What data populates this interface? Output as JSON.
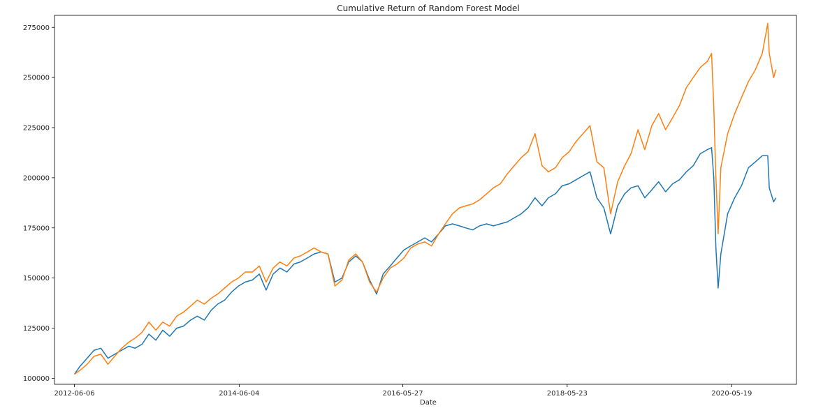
{
  "chart_data": {
    "type": "line",
    "title": "Cumulative Return of Random Forest Model",
    "xlabel": "Date",
    "ylabel": "",
    "ylim": [
      97000,
      281000
    ],
    "xlim": [
      "2012-03-10",
      "2021-03-01"
    ],
    "x_ticks": [
      "2012-06-06",
      "2014-06-04",
      "2016-05-27",
      "2018-05-23",
      "2020-05-19"
    ],
    "y_ticks": [
      100000,
      125000,
      150000,
      175000,
      200000,
      225000,
      250000,
      275000
    ],
    "y_tick_labels": [
      "100000",
      "125000",
      "150000",
      "175000",
      "200000",
      "225000",
      "250000",
      "275000"
    ],
    "grid": false,
    "legend": "none",
    "series": [
      {
        "color": "#1f77b4",
        "points": [
          [
            "2012-06-06",
            102000
          ],
          [
            "2012-07-01",
            106000
          ],
          [
            "2012-08-01",
            110000
          ],
          [
            "2012-09-01",
            114000
          ],
          [
            "2012-10-01",
            115000
          ],
          [
            "2012-11-01",
            110000
          ],
          [
            "2012-12-01",
            112000
          ],
          [
            "2013-01-01",
            114000
          ],
          [
            "2013-02-01",
            116000
          ],
          [
            "2013-03-01",
            115000
          ],
          [
            "2013-04-01",
            117000
          ],
          [
            "2013-05-01",
            122000
          ],
          [
            "2013-06-01",
            119000
          ],
          [
            "2013-07-01",
            124000
          ],
          [
            "2013-08-01",
            121000
          ],
          [
            "2013-09-01",
            125000
          ],
          [
            "2013-10-01",
            126000
          ],
          [
            "2013-11-01",
            129000
          ],
          [
            "2013-12-01",
            131000
          ],
          [
            "2014-01-01",
            129000
          ],
          [
            "2014-02-01",
            134000
          ],
          [
            "2014-03-01",
            137000
          ],
          [
            "2014-04-01",
            139000
          ],
          [
            "2014-05-01",
            143000
          ],
          [
            "2014-06-01",
            146000
          ],
          [
            "2014-07-01",
            148000
          ],
          [
            "2014-08-01",
            149000
          ],
          [
            "2014-09-01",
            152000
          ],
          [
            "2014-10-01",
            144000
          ],
          [
            "2014-11-01",
            152000
          ],
          [
            "2014-12-01",
            155000
          ],
          [
            "2015-01-01",
            153000
          ],
          [
            "2015-02-01",
            157000
          ],
          [
            "2015-03-01",
            158000
          ],
          [
            "2015-04-01",
            160000
          ],
          [
            "2015-05-01",
            162000
          ],
          [
            "2015-06-01",
            163000
          ],
          [
            "2015-07-01",
            162000
          ],
          [
            "2015-08-01",
            148000
          ],
          [
            "2015-09-01",
            150000
          ],
          [
            "2015-10-01",
            158000
          ],
          [
            "2015-11-01",
            161000
          ],
          [
            "2015-12-01",
            158000
          ],
          [
            "2016-01-01",
            149000
          ],
          [
            "2016-02-01",
            142000
          ],
          [
            "2016-03-01",
            152000
          ],
          [
            "2016-04-01",
            156000
          ],
          [
            "2016-05-01",
            160000
          ],
          [
            "2016-06-01",
            164000
          ],
          [
            "2016-07-01",
            166000
          ],
          [
            "2016-08-01",
            168000
          ],
          [
            "2016-09-01",
            170000
          ],
          [
            "2016-10-01",
            168000
          ],
          [
            "2016-11-01",
            172000
          ],
          [
            "2016-12-01",
            176000
          ],
          [
            "2017-01-01",
            177000
          ],
          [
            "2017-02-01",
            176000
          ],
          [
            "2017-03-01",
            175000
          ],
          [
            "2017-04-01",
            174000
          ],
          [
            "2017-05-01",
            176000
          ],
          [
            "2017-06-01",
            177000
          ],
          [
            "2017-07-01",
            176000
          ],
          [
            "2017-08-01",
            177000
          ],
          [
            "2017-09-01",
            178000
          ],
          [
            "2017-10-01",
            180000
          ],
          [
            "2017-11-01",
            182000
          ],
          [
            "2017-12-01",
            185000
          ],
          [
            "2018-01-01",
            190000
          ],
          [
            "2018-02-01",
            186000
          ],
          [
            "2018-03-01",
            190000
          ],
          [
            "2018-04-01",
            192000
          ],
          [
            "2018-05-01",
            196000
          ],
          [
            "2018-06-01",
            197000
          ],
          [
            "2018-07-01",
            199000
          ],
          [
            "2018-08-01",
            201000
          ],
          [
            "2018-09-01",
            203000
          ],
          [
            "2018-10-01",
            190000
          ],
          [
            "2018-11-01",
            185000
          ],
          [
            "2018-12-01",
            172000
          ],
          [
            "2019-01-01",
            186000
          ],
          [
            "2019-02-01",
            192000
          ],
          [
            "2019-03-01",
            195000
          ],
          [
            "2019-04-01",
            196000
          ],
          [
            "2019-05-01",
            190000
          ],
          [
            "2019-06-01",
            194000
          ],
          [
            "2019-07-01",
            198000
          ],
          [
            "2019-08-01",
            193000
          ],
          [
            "2019-09-01",
            197000
          ],
          [
            "2019-10-01",
            199000
          ],
          [
            "2019-11-01",
            203000
          ],
          [
            "2019-12-01",
            206000
          ],
          [
            "2020-01-01",
            212000
          ],
          [
            "2020-02-01",
            214000
          ],
          [
            "2020-02-20",
            215000
          ],
          [
            "2020-03-01",
            200000
          ],
          [
            "2020-03-10",
            165000
          ],
          [
            "2020-03-20",
            145000
          ],
          [
            "2020-04-01",
            162000
          ],
          [
            "2020-05-01",
            182000
          ],
          [
            "2020-06-01",
            190000
          ],
          [
            "2020-07-01",
            196000
          ],
          [
            "2020-08-01",
            205000
          ],
          [
            "2020-09-01",
            208000
          ],
          [
            "2020-10-01",
            211000
          ],
          [
            "2020-10-25",
            211000
          ],
          [
            "2020-11-01",
            195000
          ],
          [
            "2020-11-20",
            188000
          ],
          [
            "2020-12-01",
            190000
          ]
        ]
      },
      {
        "color": "#ff7f0e",
        "points": [
          [
            "2012-06-06",
            102000
          ],
          [
            "2012-07-01",
            104000
          ],
          [
            "2012-08-01",
            107000
          ],
          [
            "2012-09-01",
            111000
          ],
          [
            "2012-10-01",
            112000
          ],
          [
            "2012-11-01",
            107000
          ],
          [
            "2012-12-01",
            111000
          ],
          [
            "2013-01-01",
            115000
          ],
          [
            "2013-02-01",
            118000
          ],
          [
            "2013-03-01",
            120000
          ],
          [
            "2013-04-01",
            123000
          ],
          [
            "2013-05-01",
            128000
          ],
          [
            "2013-06-01",
            124000
          ],
          [
            "2013-07-01",
            128000
          ],
          [
            "2013-08-01",
            126000
          ],
          [
            "2013-09-01",
            131000
          ],
          [
            "2013-10-01",
            133000
          ],
          [
            "2013-11-01",
            136000
          ],
          [
            "2013-12-01",
            139000
          ],
          [
            "2014-01-01",
            137000
          ],
          [
            "2014-02-01",
            140000
          ],
          [
            "2014-03-01",
            142000
          ],
          [
            "2014-04-01",
            145000
          ],
          [
            "2014-05-01",
            148000
          ],
          [
            "2014-06-01",
            150000
          ],
          [
            "2014-07-01",
            153000
          ],
          [
            "2014-08-01",
            153000
          ],
          [
            "2014-09-01",
            156000
          ],
          [
            "2014-10-01",
            148000
          ],
          [
            "2014-11-01",
            155000
          ],
          [
            "2014-12-01",
            158000
          ],
          [
            "2015-01-01",
            156000
          ],
          [
            "2015-02-01",
            160000
          ],
          [
            "2015-03-01",
            161000
          ],
          [
            "2015-04-01",
            163000
          ],
          [
            "2015-05-01",
            165000
          ],
          [
            "2015-06-01",
            163000
          ],
          [
            "2015-07-01",
            162000
          ],
          [
            "2015-08-01",
            146000
          ],
          [
            "2015-09-01",
            149000
          ],
          [
            "2015-10-01",
            159000
          ],
          [
            "2015-11-01",
            162000
          ],
          [
            "2015-12-01",
            158000
          ],
          [
            "2016-01-01",
            148000
          ],
          [
            "2016-02-01",
            143000
          ],
          [
            "2016-03-01",
            150000
          ],
          [
            "2016-04-01",
            155000
          ],
          [
            "2016-05-01",
            157000
          ],
          [
            "2016-06-01",
            160000
          ],
          [
            "2016-07-01",
            165000
          ],
          [
            "2016-08-01",
            167000
          ],
          [
            "2016-09-01",
            168000
          ],
          [
            "2016-10-01",
            166000
          ],
          [
            "2016-11-01",
            172000
          ],
          [
            "2016-12-01",
            177000
          ],
          [
            "2017-01-01",
            182000
          ],
          [
            "2017-02-01",
            185000
          ],
          [
            "2017-03-01",
            186000
          ],
          [
            "2017-04-01",
            187000
          ],
          [
            "2017-05-01",
            189000
          ],
          [
            "2017-06-01",
            192000
          ],
          [
            "2017-07-01",
            195000
          ],
          [
            "2017-08-01",
            197000
          ],
          [
            "2017-09-01",
            202000
          ],
          [
            "2017-10-01",
            206000
          ],
          [
            "2017-11-01",
            210000
          ],
          [
            "2017-12-01",
            213000
          ],
          [
            "2018-01-01",
            222000
          ],
          [
            "2018-02-01",
            206000
          ],
          [
            "2018-03-01",
            203000
          ],
          [
            "2018-04-01",
            205000
          ],
          [
            "2018-05-01",
            210000
          ],
          [
            "2018-06-01",
            213000
          ],
          [
            "2018-07-01",
            218000
          ],
          [
            "2018-08-01",
            222000
          ],
          [
            "2018-09-01",
            226000
          ],
          [
            "2018-10-01",
            208000
          ],
          [
            "2018-11-01",
            205000
          ],
          [
            "2018-12-01",
            182000
          ],
          [
            "2019-01-01",
            198000
          ],
          [
            "2019-02-01",
            206000
          ],
          [
            "2019-03-01",
            212000
          ],
          [
            "2019-04-01",
            224000
          ],
          [
            "2019-05-01",
            214000
          ],
          [
            "2019-06-01",
            226000
          ],
          [
            "2019-07-01",
            232000
          ],
          [
            "2019-08-01",
            224000
          ],
          [
            "2019-09-01",
            230000
          ],
          [
            "2019-10-01",
            236000
          ],
          [
            "2019-11-01",
            245000
          ],
          [
            "2019-12-01",
            250000
          ],
          [
            "2020-01-01",
            255000
          ],
          [
            "2020-02-01",
            258000
          ],
          [
            "2020-02-20",
            262000
          ],
          [
            "2020-03-01",
            235000
          ],
          [
            "2020-03-10",
            200000
          ],
          [
            "2020-03-20",
            172000
          ],
          [
            "2020-04-01",
            205000
          ],
          [
            "2020-05-01",
            222000
          ],
          [
            "2020-06-01",
            232000
          ],
          [
            "2020-07-01",
            240000
          ],
          [
            "2020-08-01",
            248000
          ],
          [
            "2020-09-01",
            254000
          ],
          [
            "2020-10-01",
            262000
          ],
          [
            "2020-10-25",
            277000
          ],
          [
            "2020-11-01",
            262000
          ],
          [
            "2020-11-20",
            250000
          ],
          [
            "2020-12-01",
            254000
          ]
        ]
      }
    ]
  }
}
